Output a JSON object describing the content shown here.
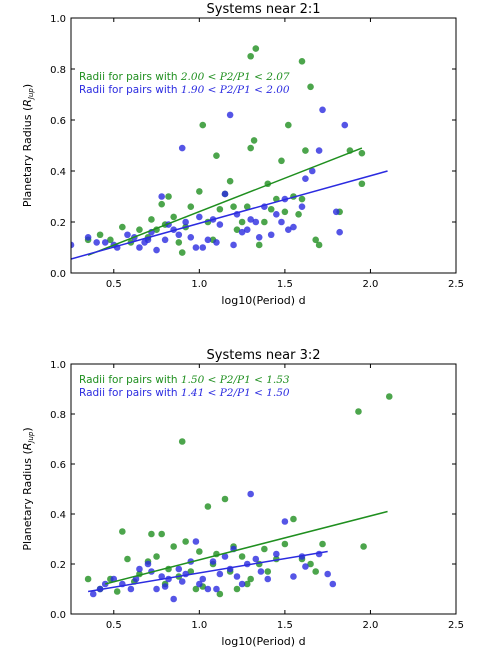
{
  "chart_data": [
    {
      "type": "scatter",
      "title": "Systems near 2:1",
      "xlabel": "log10(Period) d",
      "ylabel": "Planetary Radius (R_Jup)",
      "xlim": [
        0.25,
        2.5
      ],
      "ylim": [
        0.0,
        1.0
      ],
      "xticks": [
        "0.5",
        "1.0",
        "1.5",
        "2.0",
        "2.5"
      ],
      "yticks": [
        "0.0",
        "0.2",
        "0.4",
        "0.6",
        "0.8",
        "1.0"
      ],
      "grid": false,
      "legend_position": "top-left",
      "series": [
        {
          "name": "Radii for pairs with 2.00 < P2/P1 < 2.07",
          "color": "#1f8f1f",
          "points": [
            [
              0.35,
              0.13
            ],
            [
              0.42,
              0.15
            ],
            [
              0.48,
              0.13
            ],
            [
              0.55,
              0.18
            ],
            [
              0.6,
              0.12
            ],
            [
              0.65,
              0.17
            ],
            [
              0.7,
              0.14
            ],
            [
              0.72,
              0.21
            ],
            [
              0.75,
              0.17
            ],
            [
              0.78,
              0.27
            ],
            [
              0.8,
              0.19
            ],
            [
              0.82,
              0.3
            ],
            [
              0.85,
              0.22
            ],
            [
              0.88,
              0.12
            ],
            [
              0.9,
              0.08
            ],
            [
              0.92,
              0.18
            ],
            [
              0.95,
              0.26
            ],
            [
              1.0,
              0.32
            ],
            [
              1.02,
              0.58
            ],
            [
              1.05,
              0.2
            ],
            [
              1.08,
              0.13
            ],
            [
              1.1,
              0.46
            ],
            [
              1.12,
              0.25
            ],
            [
              1.15,
              0.31
            ],
            [
              1.18,
              0.36
            ],
            [
              1.2,
              0.26
            ],
            [
              1.22,
              0.17
            ],
            [
              1.25,
              0.2
            ],
            [
              1.28,
              0.26
            ],
            [
              1.3,
              0.49
            ],
            [
              1.32,
              0.52
            ],
            [
              1.35,
              0.11
            ],
            [
              1.38,
              0.2
            ],
            [
              1.4,
              0.35
            ],
            [
              1.42,
              0.25
            ],
            [
              1.45,
              0.29
            ],
            [
              1.48,
              0.44
            ],
            [
              1.5,
              0.24
            ],
            [
              1.52,
              0.58
            ],
            [
              1.55,
              0.3
            ],
            [
              1.58,
              0.23
            ],
            [
              1.6,
              0.29
            ],
            [
              1.62,
              0.48
            ],
            [
              1.65,
              0.73
            ],
            [
              1.68,
              0.13
            ],
            [
              1.7,
              0.11
            ],
            [
              1.82,
              0.24
            ],
            [
              1.88,
              0.48
            ],
            [
              1.95,
              0.35
            ],
            [
              1.95,
              0.47
            ],
            [
              1.3,
              0.85
            ],
            [
              1.33,
              0.88
            ],
            [
              1.6,
              0.83
            ]
          ],
          "fit_line": [
            [
              0.35,
              0.07
            ],
            [
              1.95,
              0.49
            ]
          ]
        },
        {
          "name": "Radii for pairs with 1.90 < P2/P1 < 2.00",
          "color": "#2b2be0",
          "points": [
            [
              0.25,
              0.11
            ],
            [
              0.35,
              0.14
            ],
            [
              0.4,
              0.12
            ],
            [
              0.45,
              0.12
            ],
            [
              0.5,
              0.11
            ],
            [
              0.52,
              0.1
            ],
            [
              0.58,
              0.15
            ],
            [
              0.62,
              0.14
            ],
            [
              0.65,
              0.1
            ],
            [
              0.68,
              0.12
            ],
            [
              0.7,
              0.13
            ],
            [
              0.72,
              0.16
            ],
            [
              0.75,
              0.09
            ],
            [
              0.78,
              0.3
            ],
            [
              0.8,
              0.13
            ],
            [
              0.82,
              0.19
            ],
            [
              0.85,
              0.17
            ],
            [
              0.88,
              0.15
            ],
            [
              0.9,
              0.49
            ],
            [
              0.92,
              0.2
            ],
            [
              0.95,
              0.14
            ],
            [
              0.98,
              0.1
            ],
            [
              1.0,
              0.22
            ],
            [
              1.02,
              0.1
            ],
            [
              1.05,
              0.13
            ],
            [
              1.08,
              0.21
            ],
            [
              1.1,
              0.12
            ],
            [
              1.12,
              0.19
            ],
            [
              1.15,
              0.31
            ],
            [
              1.18,
              0.62
            ],
            [
              1.2,
              0.11
            ],
            [
              1.22,
              0.23
            ],
            [
              1.25,
              0.16
            ],
            [
              1.28,
              0.17
            ],
            [
              1.3,
              0.21
            ],
            [
              1.33,
              0.2
            ],
            [
              1.35,
              0.14
            ],
            [
              1.38,
              0.26
            ],
            [
              1.42,
              0.15
            ],
            [
              1.45,
              0.23
            ],
            [
              1.48,
              0.2
            ],
            [
              1.5,
              0.29
            ],
            [
              1.52,
              0.17
            ],
            [
              1.55,
              0.18
            ],
            [
              1.6,
              0.26
            ],
            [
              1.62,
              0.37
            ],
            [
              1.66,
              0.4
            ],
            [
              1.7,
              0.48
            ],
            [
              1.72,
              0.64
            ],
            [
              1.8,
              0.24
            ],
            [
              1.82,
              0.16
            ],
            [
              1.85,
              0.58
            ]
          ],
          "fit_line": [
            [
              0.25,
              0.055
            ],
            [
              2.1,
              0.4
            ]
          ]
        }
      ]
    },
    {
      "type": "scatter",
      "title": "Systems near 3:2",
      "xlabel": "log10(Period) d",
      "ylabel": "Planetary Radius (R_Jup)",
      "xlim": [
        0.25,
        2.5
      ],
      "ylim": [
        0.0,
        1.0
      ],
      "xticks": [
        "0.5",
        "1.0",
        "1.5",
        "2.0",
        "2.5"
      ],
      "yticks": [
        "0.0",
        "0.2",
        "0.4",
        "0.6",
        "0.8",
        "1.0"
      ],
      "grid": false,
      "legend_position": "top-left",
      "series": [
        {
          "name": "Radii for pairs with 1.50 < P2/P1 < 1.53",
          "color": "#1f8f1f",
          "points": [
            [
              0.35,
              0.14
            ],
            [
              0.42,
              0.1
            ],
            [
              0.48,
              0.14
            ],
            [
              0.52,
              0.09
            ],
            [
              0.55,
              0.33
            ],
            [
              0.58,
              0.22
            ],
            [
              0.62,
              0.13
            ],
            [
              0.65,
              0.16
            ],
            [
              0.7,
              0.21
            ],
            [
              0.72,
              0.32
            ],
            [
              0.75,
              0.23
            ],
            [
              0.78,
              0.32
            ],
            [
              0.8,
              0.12
            ],
            [
              0.82,
              0.18
            ],
            [
              0.85,
              0.27
            ],
            [
              0.88,
              0.15
            ],
            [
              0.9,
              0.69
            ],
            [
              0.92,
              0.29
            ],
            [
              0.95,
              0.17
            ],
            [
              0.98,
              0.1
            ],
            [
              1.0,
              0.25
            ],
            [
              1.02,
              0.11
            ],
            [
              1.05,
              0.43
            ],
            [
              1.08,
              0.2
            ],
            [
              1.1,
              0.24
            ],
            [
              1.12,
              0.08
            ],
            [
              1.15,
              0.46
            ],
            [
              1.18,
              0.17
            ],
            [
              1.2,
              0.27
            ],
            [
              1.22,
              0.1
            ],
            [
              1.25,
              0.23
            ],
            [
              1.28,
              0.12
            ],
            [
              1.3,
              0.14
            ],
            [
              1.35,
              0.2
            ],
            [
              1.38,
              0.26
            ],
            [
              1.4,
              0.17
            ],
            [
              1.45,
              0.22
            ],
            [
              1.5,
              0.28
            ],
            [
              1.55,
              0.38
            ],
            [
              1.6,
              0.22
            ],
            [
              1.65,
              0.2
            ],
            [
              1.68,
              0.17
            ],
            [
              1.72,
              0.28
            ],
            [
              1.93,
              0.81
            ],
            [
              1.96,
              0.27
            ],
            [
              2.11,
              0.87
            ]
          ],
          "fit_line": [
            [
              0.45,
              0.12
            ],
            [
              2.1,
              0.41
            ]
          ]
        },
        {
          "name": "Radii for pairs with 1.41 < P2/P1 < 1.50",
          "color": "#2b2be0",
          "points": [
            [
              0.38,
              0.08
            ],
            [
              0.42,
              0.1
            ],
            [
              0.45,
              0.12
            ],
            [
              0.5,
              0.14
            ],
            [
              0.55,
              0.12
            ],
            [
              0.6,
              0.1
            ],
            [
              0.63,
              0.14
            ],
            [
              0.65,
              0.18
            ],
            [
              0.7,
              0.2
            ],
            [
              0.72,
              0.17
            ],
            [
              0.75,
              0.1
            ],
            [
              0.78,
              0.15
            ],
            [
              0.8,
              0.11
            ],
            [
              0.82,
              0.14
            ],
            [
              0.85,
              0.06
            ],
            [
              0.88,
              0.18
            ],
            [
              0.9,
              0.13
            ],
            [
              0.92,
              0.16
            ],
            [
              0.95,
              0.21
            ],
            [
              0.98,
              0.29
            ],
            [
              1.0,
              0.12
            ],
            [
              1.02,
              0.14
            ],
            [
              1.05,
              0.1
            ],
            [
              1.08,
              0.21
            ],
            [
              1.1,
              0.1
            ],
            [
              1.12,
              0.16
            ],
            [
              1.15,
              0.23
            ],
            [
              1.18,
              0.18
            ],
            [
              1.2,
              0.26
            ],
            [
              1.22,
              0.15
            ],
            [
              1.25,
              0.12
            ],
            [
              1.28,
              0.2
            ],
            [
              1.3,
              0.48
            ],
            [
              1.33,
              0.22
            ],
            [
              1.36,
              0.17
            ],
            [
              1.4,
              0.14
            ],
            [
              1.45,
              0.24
            ],
            [
              1.5,
              0.37
            ],
            [
              1.55,
              0.15
            ],
            [
              1.6,
              0.23
            ],
            [
              1.62,
              0.19
            ],
            [
              1.7,
              0.24
            ],
            [
              1.75,
              0.16
            ],
            [
              1.78,
              0.12
            ]
          ],
          "fit_line": [
            [
              0.35,
              0.09
            ],
            [
              1.75,
              0.25
            ]
          ]
        }
      ]
    }
  ]
}
